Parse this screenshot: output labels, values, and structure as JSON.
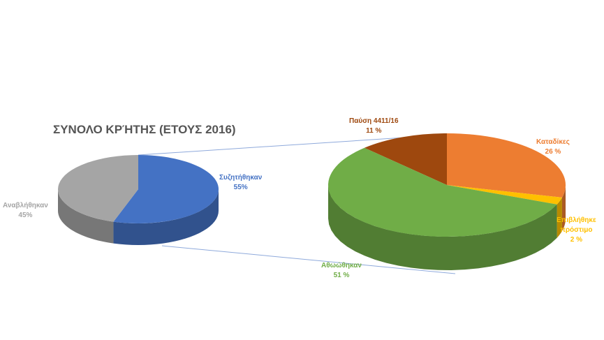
{
  "chart_data": {
    "type": "pie",
    "subtype": "bar-of-pie (3D)",
    "title": "ΣΥΝΟΛΟ ΚΡΉΤΗΣ (ΕΤΟΥΣ 2016)",
    "main_pie": {
      "slices": [
        {
          "label": "Συζητήθηκαν",
          "value": 55,
          "value_label": "55%",
          "color": "#4472C4"
        },
        {
          "label": "Αναβλήθηκαν",
          "value": 45,
          "value_label": "45%",
          "color": "#A5A5A5"
        }
      ]
    },
    "secondary_pie": {
      "breakdown_of": "Συζητήθηκαν",
      "slices": [
        {
          "label": "Παύση 4411/16",
          "value": 11,
          "value_label": "11 %",
          "color": "#9E480E"
        },
        {
          "label": "Καταδίκες",
          "value": 26,
          "value_label": "26 %",
          "color": "#ED7D31"
        },
        {
          "label": "Επιβλήθηκε πρόστιμο",
          "label_lines": [
            "Επιβλήθηκε",
            "πρόστιμο"
          ],
          "value": 2,
          "value_label": "2 %",
          "color": "#FFC000"
        },
        {
          "label": "Αθωώθηκαν",
          "value": 51,
          "value_label": "51 %",
          "color": "#70AD47"
        }
      ]
    },
    "connector_color": "#8EA9DB",
    "legend": "none"
  }
}
